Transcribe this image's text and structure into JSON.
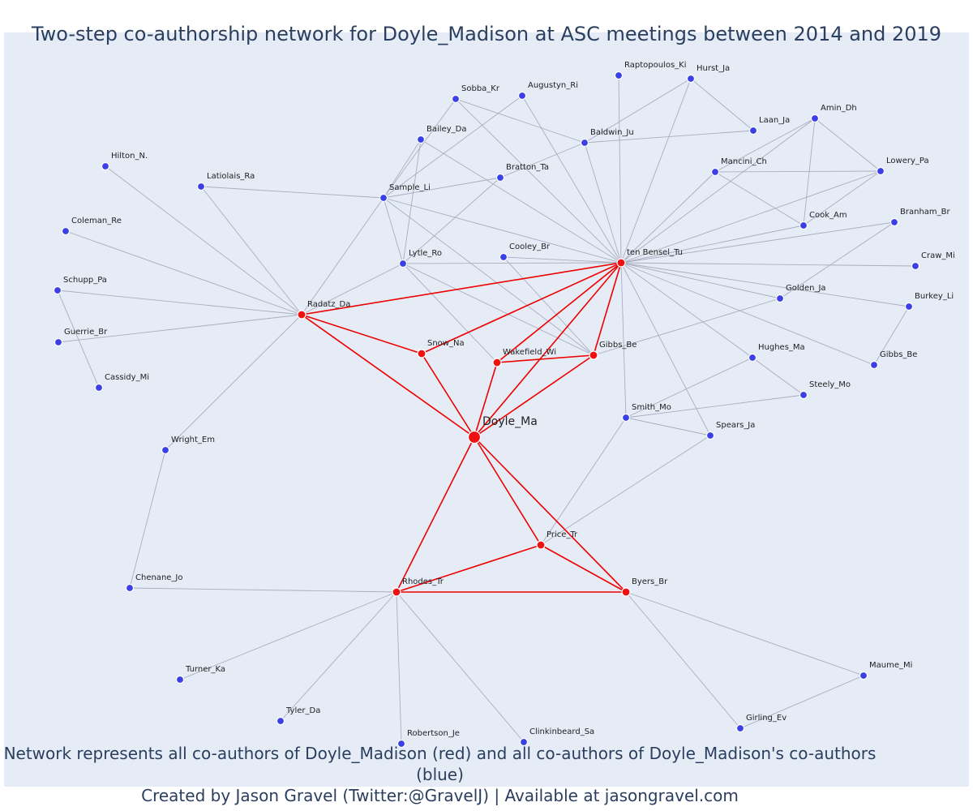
{
  "title": "Two-step co-authorship network for Doyle_Madison at ASC meetings between 2014 and 2019",
  "caption": {
    "line1": "Network represents all co-authors of Doyle_Madison (red) and all co-authors of Doyle_Madison's co-authors (blue)",
    "line2": "Created by Jason Gravel (Twitter:@GravelJ) | Available at jasongravel.com"
  },
  "colors": {
    "ego": "#ee1111",
    "first_step": "#ee1111",
    "second_step": "#3b3fe6",
    "red_edge": "#ee0000",
    "grey_edge": "#a9adc0",
    "background": "#e5ecf6"
  },
  "nodes": [
    {
      "id": "doyle",
      "label": "Doyle_Ma",
      "group": "ego"
    },
    {
      "id": "radatz",
      "label": "Radatz_Da",
      "group": "first"
    },
    {
      "id": "snow",
      "label": "Snow_Na",
      "group": "first"
    },
    {
      "id": "wakefield",
      "label": "Wakefield_Wi",
      "group": "first"
    },
    {
      "id": "gibbs1",
      "label": "Gibbs_Be",
      "group": "first"
    },
    {
      "id": "tenbensel",
      "label": "ten Bensel_Tu",
      "group": "first"
    },
    {
      "id": "rhodes",
      "label": "Rhodes_Tr",
      "group": "first"
    },
    {
      "id": "price",
      "label": "Price_Tr",
      "group": "first"
    },
    {
      "id": "byers",
      "label": "Byers_Br",
      "group": "first"
    },
    {
      "id": "raptopoulos",
      "label": "Raptopoulos_Ki",
      "group": "second"
    },
    {
      "id": "hurst",
      "label": "Hurst_Ja",
      "group": "second"
    },
    {
      "id": "sobba",
      "label": "Sobba_Kr",
      "group": "second"
    },
    {
      "id": "augustyn",
      "label": "Augustyn_Ri",
      "group": "second"
    },
    {
      "id": "laan",
      "label": "Laan_Ja",
      "group": "second"
    },
    {
      "id": "amin",
      "label": "Amin_Dh",
      "group": "second"
    },
    {
      "id": "bailey",
      "label": "Bailey_Da",
      "group": "second"
    },
    {
      "id": "baldwin",
      "label": "Baldwin_Ju",
      "group": "second"
    },
    {
      "id": "mancini",
      "label": "Mancini_Ch",
      "group": "second"
    },
    {
      "id": "lowery",
      "label": "Lowery_Pa",
      "group": "second"
    },
    {
      "id": "hilton",
      "label": "Hilton_N.",
      "group": "second"
    },
    {
      "id": "bratton",
      "label": "Bratton_Ta",
      "group": "second"
    },
    {
      "id": "latiolais",
      "label": "Latiolais_Ra",
      "group": "second"
    },
    {
      "id": "sample",
      "label": "Sample_Li",
      "group": "second"
    },
    {
      "id": "cook",
      "label": "Cook_Am",
      "group": "second"
    },
    {
      "id": "branham",
      "label": "Branham_Br",
      "group": "second"
    },
    {
      "id": "coleman",
      "label": "Coleman_Re",
      "group": "second"
    },
    {
      "id": "cooley",
      "label": "Cooley_Br",
      "group": "second"
    },
    {
      "id": "lytle",
      "label": "Lytle_Ro",
      "group": "second"
    },
    {
      "id": "craw",
      "label": "Craw_Mi",
      "group": "second"
    },
    {
      "id": "schupp",
      "label": "Schupp_Pa",
      "group": "second"
    },
    {
      "id": "golden",
      "label": "Golden_Ja",
      "group": "second"
    },
    {
      "id": "burkey",
      "label": "Burkey_Li",
      "group": "second"
    },
    {
      "id": "guerrie",
      "label": "Guerrie_Br",
      "group": "second"
    },
    {
      "id": "hughes",
      "label": "Hughes_Ma",
      "group": "second"
    },
    {
      "id": "gibbs2",
      "label": "Gibbs_Be",
      "group": "second"
    },
    {
      "id": "cassidy",
      "label": "Cassidy_Mi",
      "group": "second"
    },
    {
      "id": "steely",
      "label": "Steely_Mo",
      "group": "second"
    },
    {
      "id": "smith",
      "label": "Smith_Mo",
      "group": "second"
    },
    {
      "id": "spears",
      "label": "Spears_Ja",
      "group": "second"
    },
    {
      "id": "wright",
      "label": "Wright_Em",
      "group": "second"
    },
    {
      "id": "chenane",
      "label": "Chenane_Jo",
      "group": "second"
    },
    {
      "id": "turner",
      "label": "Turner_Ka",
      "group": "second"
    },
    {
      "id": "maume",
      "label": "Maume_Mi",
      "group": "second"
    },
    {
      "id": "tyler",
      "label": "Tyler_Da",
      "group": "second"
    },
    {
      "id": "girling",
      "label": "Girling_Ev",
      "group": "second"
    },
    {
      "id": "robertson",
      "label": "Robertson_Je",
      "group": "second"
    },
    {
      "id": "clinkinbeard",
      "label": "Clinkinbeard_Sa",
      "group": "second"
    }
  ],
  "edges": [
    [
      "doyle",
      "radatz"
    ],
    [
      "doyle",
      "snow"
    ],
    [
      "doyle",
      "wakefield"
    ],
    [
      "doyle",
      "gibbs1"
    ],
    [
      "doyle",
      "tenbensel"
    ],
    [
      "doyle",
      "rhodes"
    ],
    [
      "doyle",
      "price"
    ],
    [
      "doyle",
      "byers"
    ],
    [
      "radatz",
      "snow"
    ],
    [
      "radatz",
      "tenbensel"
    ],
    [
      "snow",
      "tenbensel"
    ],
    [
      "wakefield",
      "gibbs1"
    ],
    [
      "wakefield",
      "tenbensel"
    ],
    [
      "gibbs1",
      "tenbensel"
    ],
    [
      "rhodes",
      "price"
    ],
    [
      "rhodes",
      "byers"
    ],
    [
      "price",
      "byers"
    ],
    [
      "radatz",
      "hilton"
    ],
    [
      "radatz",
      "latiolais"
    ],
    [
      "radatz",
      "coleman"
    ],
    [
      "radatz",
      "schupp"
    ],
    [
      "radatz",
      "guerrie"
    ],
    [
      "radatz",
      "wright"
    ],
    [
      "radatz",
      "sample"
    ],
    [
      "radatz",
      "lytle"
    ],
    [
      "schupp",
      "cassidy"
    ],
    [
      "wright",
      "chenane"
    ],
    [
      "latiolais",
      "sample"
    ],
    [
      "sample",
      "sobba"
    ],
    [
      "sample",
      "augustyn"
    ],
    [
      "sample",
      "bailey"
    ],
    [
      "sample",
      "bratton"
    ],
    [
      "sample",
      "lytle"
    ],
    [
      "sample",
      "tenbensel"
    ],
    [
      "sample",
      "gibbs1"
    ],
    [
      "bailey",
      "lytle"
    ],
    [
      "bailey",
      "tenbensel"
    ],
    [
      "bratton",
      "lytle"
    ],
    [
      "bratton",
      "baldwin"
    ],
    [
      "lytle",
      "tenbensel"
    ],
    [
      "lytle",
      "wakefield"
    ],
    [
      "lytle",
      "gibbs1"
    ],
    [
      "sobba",
      "tenbensel"
    ],
    [
      "sobba",
      "baldwin"
    ],
    [
      "augustyn",
      "tenbensel"
    ],
    [
      "baldwin",
      "tenbensel"
    ],
    [
      "baldwin",
      "laan"
    ],
    [
      "cooley",
      "tenbensel"
    ],
    [
      "cooley",
      "gibbs1"
    ],
    [
      "raptopoulos",
      "tenbensel"
    ],
    [
      "hurst",
      "tenbensel"
    ],
    [
      "hurst",
      "baldwin"
    ],
    [
      "hurst",
      "laan"
    ],
    [
      "mancini",
      "tenbensel"
    ],
    [
      "mancini",
      "lowery"
    ],
    [
      "mancini",
      "cook"
    ],
    [
      "amin",
      "tenbensel"
    ],
    [
      "amin",
      "cook"
    ],
    [
      "amin",
      "mancini"
    ],
    [
      "amin",
      "lowery"
    ],
    [
      "lowery",
      "tenbensel"
    ],
    [
      "lowery",
      "cook"
    ],
    [
      "cook",
      "tenbensel"
    ],
    [
      "branham",
      "tenbensel"
    ],
    [
      "branham",
      "golden"
    ],
    [
      "craw",
      "tenbensel"
    ],
    [
      "golden",
      "tenbensel"
    ],
    [
      "golden",
      "gibbs1"
    ],
    [
      "burkey",
      "tenbensel"
    ],
    [
      "burkey",
      "gibbs2"
    ],
    [
      "gibbs2",
      "tenbensel"
    ],
    [
      "hughes",
      "tenbensel"
    ],
    [
      "hughes",
      "smith"
    ],
    [
      "hughes",
      "steely"
    ],
    [
      "smith",
      "tenbensel"
    ],
    [
      "smith",
      "steely"
    ],
    [
      "smith",
      "spears"
    ],
    [
      "smith",
      "price"
    ],
    [
      "spears",
      "tenbensel"
    ],
    [
      "spears",
      "price"
    ],
    [
      "rhodes",
      "chenane"
    ],
    [
      "rhodes",
      "turner"
    ],
    [
      "rhodes",
      "tyler"
    ],
    [
      "rhodes",
      "robertson"
    ],
    [
      "rhodes",
      "clinkinbeard"
    ],
    [
      "byers",
      "maume"
    ],
    [
      "byers",
      "girling"
    ],
    [
      "maume",
      "girling"
    ]
  ]
}
